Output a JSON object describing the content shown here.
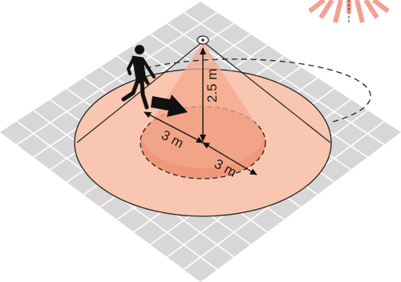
{
  "diagram": {
    "labels": {
      "mount_height": "2.5 m",
      "inner_radius_left": "3 m",
      "inner_radius_right": "3 m"
    },
    "colors": {
      "floor": "#d7d7d7",
      "grid": "#ffffff",
      "outer_zone": "#f9c6b1",
      "inner_zone": "#f0977a",
      "cone": "#f3a88e",
      "ink": "#111111",
      "sensor_rays": "#f2a090"
    },
    "icons": [
      "motion-sensor-icon",
      "walking-person-icon",
      "direction-arrow-icon",
      "detection-rays-icon"
    ]
  }
}
